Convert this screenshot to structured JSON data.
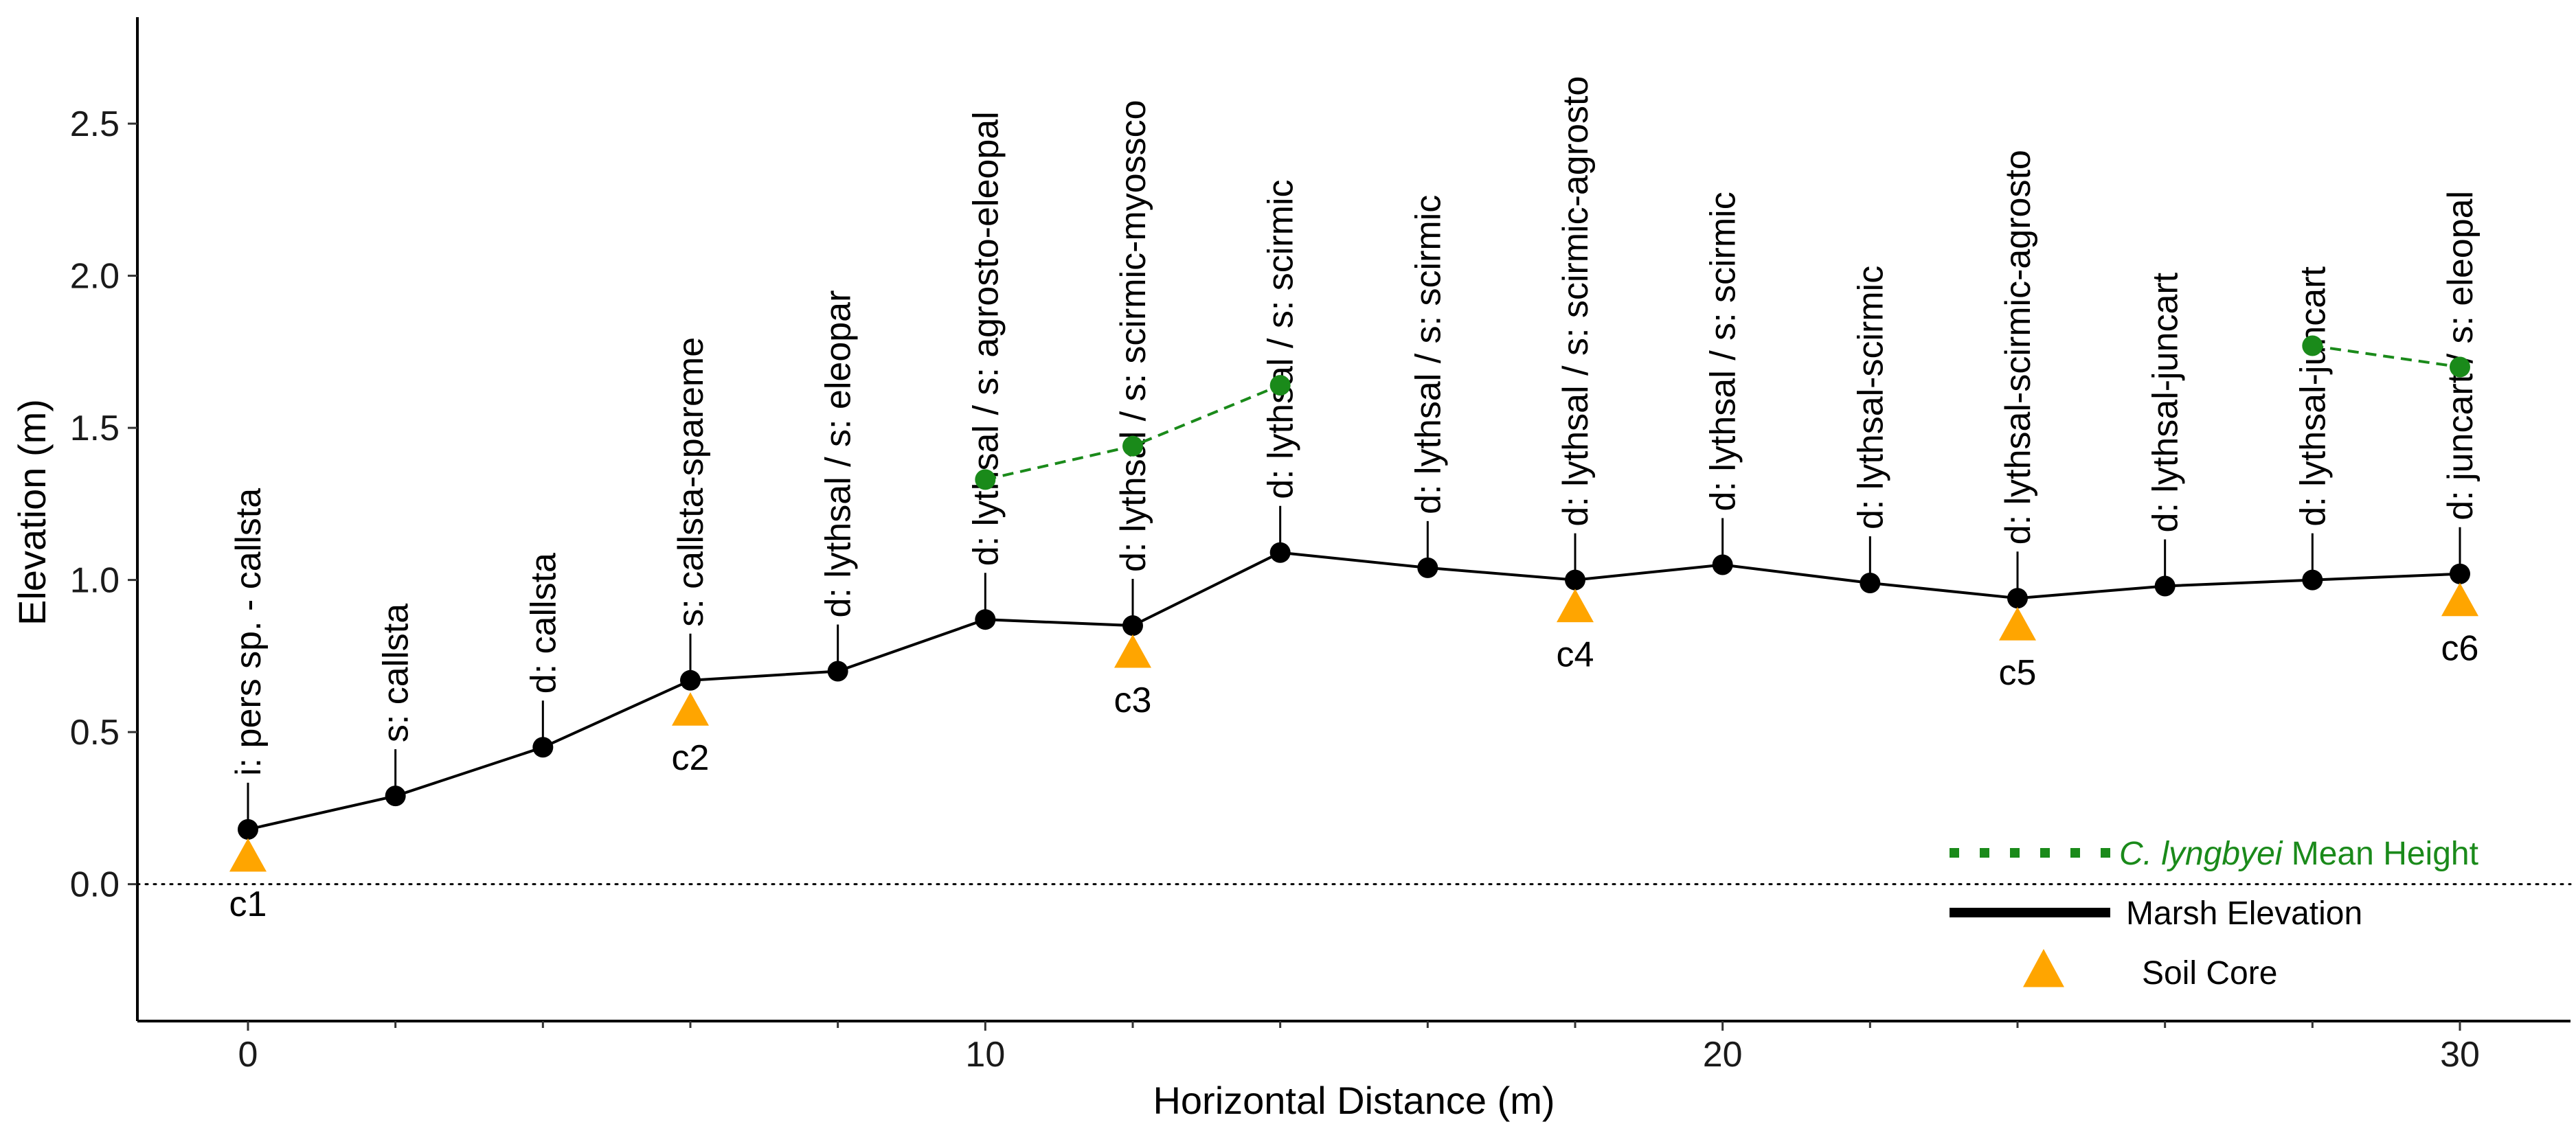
{
  "chart_data": {
    "type": "line",
    "title": "",
    "xlabel": "Horizontal Distance (m)",
    "ylabel": "Elevation (m)",
    "xlim": [
      -1.5,
      31.5
    ],
    "ylim": [
      -0.45,
      2.85
    ],
    "xticks": [
      0,
      10,
      20,
      30
    ],
    "xticks_minor": [
      2,
      4,
      6,
      8,
      12,
      14,
      16,
      18,
      22,
      24,
      26,
      28
    ],
    "yticks": [
      0.0,
      0.5,
      1.0,
      1.5,
      2.0,
      2.5
    ],
    "ytick_labels": [
      "0.0",
      "0.5",
      "1.0",
      "1.5",
      "2.0",
      "2.5"
    ],
    "reference_line": {
      "y": 0.0,
      "style": "dotted"
    },
    "grid": false,
    "legend_position": "bottom-right",
    "series": [
      {
        "name": "Marsh Elevation",
        "color": "#000000",
        "style": "solid",
        "x": [
          0,
          2,
          4,
          6,
          8,
          10,
          12,
          14,
          16,
          18,
          20,
          22,
          24,
          26,
          28,
          30
        ],
        "y": [
          0.18,
          0.29,
          0.45,
          0.67,
          0.7,
          0.87,
          0.85,
          1.09,
          1.04,
          1.0,
          1.05,
          0.99,
          0.94,
          0.98,
          1.0,
          1.02
        ]
      },
      {
        "name": "C. lyngbyei Mean Height",
        "color": "#1a8a1a",
        "style": "dashed",
        "segments": [
          {
            "x": [
              10,
              12,
              14
            ],
            "y": [
              1.33,
              1.44,
              1.64
            ]
          },
          {
            "x": [
              28,
              30
            ],
            "y": [
              1.77,
              1.7
            ]
          }
        ]
      },
      {
        "name": "Soil Core",
        "color": "#FFA500",
        "marker": "triangle",
        "x": [
          0,
          6,
          12,
          18,
          24,
          30
        ],
        "y": [
          0.09,
          0.57,
          0.76,
          0.91,
          0.85,
          0.93
        ],
        "labels": [
          "c1",
          "c2",
          "c3",
          "c4",
          "c5",
          "c6"
        ]
      }
    ],
    "annotations": [
      {
        "x": 0,
        "text": "i: pers sp. - callsta"
      },
      {
        "x": 2,
        "text": "s: callsta"
      },
      {
        "x": 4,
        "text": "d: callsta"
      },
      {
        "x": 6,
        "text": "s: callsta-spareme"
      },
      {
        "x": 8,
        "text": "d: lythsal / s: eleopar"
      },
      {
        "x": 10,
        "text": "d: lythsal / s: agrosto-eleopal"
      },
      {
        "x": 12,
        "text": "d: lythsal / s: scirmic-myossco"
      },
      {
        "x": 14,
        "text": "d: lythsal / s: scirmic"
      },
      {
        "x": 16,
        "text": "d: lythsal / s: scirmic"
      },
      {
        "x": 18,
        "text": "d: lythsal / s: scirmic-agrosto"
      },
      {
        "x": 20,
        "text": "d: lythsal / s: scirmic"
      },
      {
        "x": 22,
        "text": "d: lythsal-scirmic"
      },
      {
        "x": 24,
        "text": "d: lythsal-scirmic-agrosto"
      },
      {
        "x": 26,
        "text": "d: lythsal-juncart"
      },
      {
        "x": 28,
        "text": "d: lythsal-juncart"
      },
      {
        "x": 30,
        "text": "d: juncart / s: eleopal"
      }
    ],
    "legend": [
      {
        "italic": "C. lyngbyei",
        "rest": " Mean Height",
        "color": "#1a8a1a",
        "swatch": "dotted"
      },
      {
        "text": "Marsh Elevation",
        "color": "#000000",
        "swatch": "solid"
      },
      {
        "text": "Soil Core",
        "color": "#000000",
        "swatch": "triangle"
      }
    ]
  }
}
